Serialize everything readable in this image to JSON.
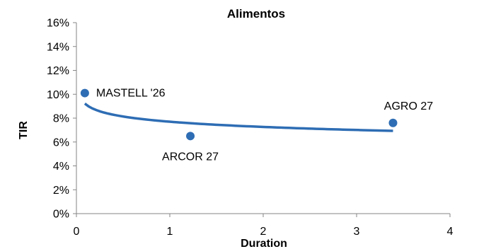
{
  "chart_data": {
    "type": "scatter",
    "title": "Alimentos",
    "xlabel": "Duration",
    "ylabel": "TIR",
    "xlim": [
      0,
      4
    ],
    "ylim": [
      0,
      16
    ],
    "x_ticks": [
      0,
      1,
      2,
      3,
      4
    ],
    "y_ticks": [
      0,
      2,
      4,
      6,
      8,
      10,
      12,
      14,
      16
    ],
    "y_tick_suffix": "%",
    "grid": false,
    "points": [
      {
        "label": "MASTELL '26",
        "x": 0.09,
        "y": 10.1
      },
      {
        "label": "ARCOR 27",
        "x": 1.22,
        "y": 6.5
      },
      {
        "label": "AGRO 27",
        "x": 3.39,
        "y": 7.6
      }
    ],
    "trendline": {
      "type": "logarithmic",
      "x_range": [
        0.09,
        3.39
      ],
      "a": 7.7,
      "b": -0.63
    },
    "colors": {
      "marker": "#2E6DB4",
      "trendline": "#2E6DB4"
    }
  }
}
